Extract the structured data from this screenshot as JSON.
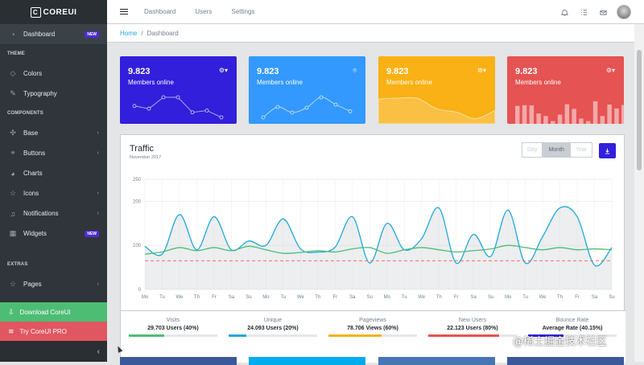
{
  "brand": {
    "name": "COREUI"
  },
  "sidebar": {
    "dashboard": {
      "label": "Dashboard",
      "badge": "NEW"
    },
    "theme_title": "THEME",
    "colors": "Colors",
    "typography": "Typography",
    "components_title": "COMPONENTS",
    "base": "Base",
    "buttons": "Buttons",
    "charts": "Charts",
    "icons": "Icons",
    "notifications": "Notifications",
    "widgets": {
      "label": "Widgets",
      "badge": "NEW"
    },
    "extras_title": "EXTRAS",
    "pages": "Pages",
    "download": "Download CoreUI",
    "pro": "Try CoreUI PRO",
    "toggle": "‹"
  },
  "topbar": {
    "nav": [
      "Dashboard",
      "Users",
      "Settings"
    ]
  },
  "breadcrumb": {
    "home": "Home",
    "current": "Dashboard"
  },
  "cards": [
    {
      "value": "9.823",
      "label": "Members online",
      "color": "#321fdb",
      "points": [
        65,
        59,
        84,
        84,
        51,
        55,
        40
      ]
    },
    {
      "value": "9.823",
      "label": "Members online",
      "color": "#3399ff",
      "points": [
        1,
        18,
        9,
        17,
        34,
        22,
        11
      ]
    },
    {
      "value": "9.823",
      "label": "Members online",
      "color": "#f9b115",
      "points": [
        78,
        81,
        80,
        45,
        34,
        12,
        40
      ]
    },
    {
      "value": "9.823",
      "label": "Members online",
      "color": "#e55353",
      "bars": [
        78,
        81,
        80,
        45,
        34,
        12,
        40,
        85,
        65,
        23,
        12,
        98,
        34,
        84,
        67,
        82
      ]
    }
  ],
  "traffic": {
    "title": "Traffic",
    "subtitle": "November 2017",
    "buttons": [
      "Day",
      "Month",
      "Year"
    ],
    "selected": "Month"
  },
  "chart_data": {
    "type": "line",
    "categories": [
      "Mo",
      "Tu",
      "We",
      "Th",
      "Fr",
      "Sa",
      "Su",
      "Mo",
      "Tu",
      "We",
      "Th",
      "Fr",
      "Sa",
      "Su",
      "Mo",
      "Tu",
      "We",
      "Th",
      "Fr",
      "Sa",
      "Su",
      "Mo",
      "Tu",
      "We",
      "Th",
      "Fr",
      "Sa",
      "Su"
    ],
    "ylim": [
      0,
      250
    ],
    "yticks": [
      0,
      100,
      200,
      250
    ],
    "series": [
      {
        "color": "#20a8d8",
        "fill": true,
        "values": [
          98,
          80,
          170,
          90,
          165,
          90,
          110,
          100,
          160,
          92,
          85,
          96,
          165,
          60,
          150,
          90,
          115,
          185,
          60,
          125,
          75,
          180,
          60,
          120,
          185,
          165,
          55,
          95
        ]
      },
      {
        "color": "#4dbd74",
        "values": [
          80,
          85,
          95,
          88,
          95,
          88,
          98,
          90,
          82,
          84,
          88,
          85,
          92,
          95,
          82,
          90,
          95,
          90,
          85,
          88,
          92,
          100,
          95,
          90,
          95,
          90,
          92,
          90
        ]
      },
      {
        "color": "#f86c6b",
        "dashed": true,
        "values": [
          65,
          65,
          65,
          65,
          65,
          65,
          65,
          65,
          65,
          65,
          65,
          65,
          65,
          65,
          65,
          65,
          65,
          65,
          65,
          65,
          65,
          65,
          65,
          65,
          65,
          65,
          65,
          65
        ]
      }
    ]
  },
  "stats": [
    {
      "label": "Visits",
      "value": "29.703 Users (40%)",
      "percent": 40,
      "color": "#4dbd74"
    },
    {
      "label": "Unique",
      "value": "24.093 Users (20%)",
      "percent": 20,
      "color": "#20a8d8"
    },
    {
      "label": "Pageviews",
      "value": "78.706 Views (60%)",
      "percent": 60,
      "color": "#f9b115"
    },
    {
      "label": "New Users",
      "value": "22.123 Users (80%)",
      "percent": 80,
      "color": "#e55353"
    },
    {
      "label": "Bounce Rate",
      "value": "Average Rate (40.15%)",
      "percent": 40,
      "color": "#321fdb"
    }
  ],
  "bottom_cards": [
    "#3b5998",
    "#00aced",
    "#4875b4",
    "#3b5998"
  ],
  "watermark": "@稀土掘金技术社区"
}
